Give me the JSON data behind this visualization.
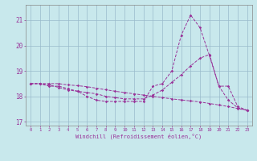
{
  "xlabel": "Windchill (Refroidissement éolien,°C)",
  "background_color": "#c8e8ec",
  "line_color": "#993399",
  "grid_color": "#99bbcc",
  "x_hours": [
    0,
    1,
    2,
    3,
    4,
    5,
    6,
    7,
    8,
    9,
    10,
    11,
    12,
    13,
    14,
    15,
    16,
    17,
    18,
    19,
    20,
    21,
    22,
    23
  ],
  "series1": [
    18.5,
    18.5,
    18.4,
    18.4,
    18.3,
    18.2,
    18.0,
    17.85,
    17.8,
    17.8,
    17.8,
    17.8,
    17.8,
    18.4,
    18.5,
    19.0,
    20.4,
    21.2,
    20.7,
    19.6,
    18.4,
    18.4,
    17.6,
    17.45
  ],
  "series2": [
    18.5,
    18.5,
    18.45,
    18.35,
    18.25,
    18.2,
    18.15,
    18.1,
    18.0,
    17.95,
    17.9,
    17.9,
    17.9,
    18.05,
    18.25,
    18.55,
    18.85,
    19.2,
    19.5,
    19.65,
    18.4,
    17.85,
    17.55,
    17.45
  ],
  "series3": [
    18.5,
    18.5,
    18.5,
    18.5,
    18.45,
    18.42,
    18.38,
    18.32,
    18.26,
    18.2,
    18.15,
    18.1,
    18.05,
    18.0,
    17.95,
    17.9,
    17.86,
    17.82,
    17.78,
    17.72,
    17.66,
    17.6,
    17.52,
    17.45
  ],
  "ylim": [
    16.85,
    21.6
  ],
  "yticks": [
    17,
    18,
    19,
    20,
    21
  ],
  "xlim": [
    -0.5,
    23.5
  ]
}
